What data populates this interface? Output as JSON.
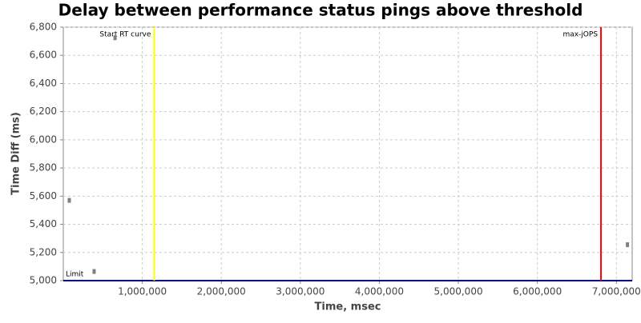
{
  "chart_data": {
    "type": "scatter",
    "title": "Delay between performance status pings above threshold",
    "xlabel": "Time, msec",
    "ylabel": "Time Diff (ms)",
    "series": [
      {
        "color": "#7f7f7f",
        "x": [
          76000,
          390000,
          655000,
          7140000
        ],
        "values": [
          5570,
          5065,
          6725,
          5255
        ]
      }
    ],
    "xlim": [
      0,
      7200000
    ],
    "xticks": [
      {
        "value": 1000000,
        "label": "1,000,000"
      },
      {
        "value": 2000000,
        "label": "2,000,000"
      },
      {
        "value": 3000000,
        "label": "3,000,000"
      },
      {
        "value": 4000000,
        "label": "4,000,000"
      },
      {
        "value": 5000000,
        "label": "5,000,000"
      },
      {
        "value": 6000000,
        "label": "6,000,000"
      },
      {
        "value": 7000000,
        "label": "7,000,000"
      }
    ],
    "ylim": [
      5000,
      6800
    ],
    "yticks": [
      {
        "value": 5000,
        "label": "5,000"
      },
      {
        "value": 5200,
        "label": "5,200"
      },
      {
        "value": 5400,
        "label": "5,400"
      },
      {
        "value": 5600,
        "label": "5,600"
      },
      {
        "value": 5800,
        "label": "5,800"
      },
      {
        "value": 6000,
        "label": "6,000"
      },
      {
        "value": 6200,
        "label": "6,200"
      },
      {
        "value": 6400,
        "label": "6,400"
      },
      {
        "value": 6600,
        "label": "6,600"
      },
      {
        "value": 6800,
        "label": "6,800"
      }
    ],
    "grid": true,
    "markers": [
      {
        "label": "Start RT curve",
        "x": 1150000,
        "color": "#ffff00"
      },
      {
        "label": "max-jOPS",
        "x": 6805000,
        "color": "#ff0000"
      }
    ],
    "limit": {
      "label": "Limit",
      "value": 5000,
      "color": "#000080"
    }
  }
}
